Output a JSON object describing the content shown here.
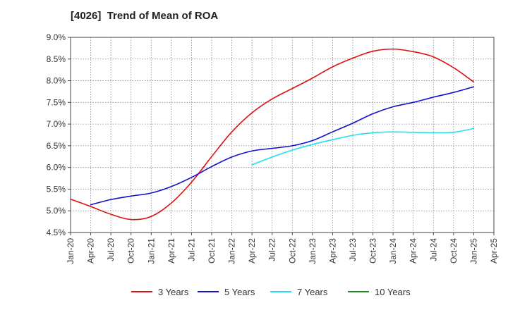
{
  "chart_data": {
    "type": "line",
    "title": "[4026]  Trend of Mean of ROA",
    "xlabel": "",
    "ylabel": "",
    "x_ticks": [
      "Jan-20",
      "Apr-20",
      "Jul-20",
      "Oct-20",
      "Jan-21",
      "Apr-21",
      "Jul-21",
      "Oct-21",
      "Jan-22",
      "Apr-22",
      "Jul-22",
      "Oct-22",
      "Jan-23",
      "Apr-23",
      "Jul-23",
      "Oct-23",
      "Jan-24",
      "Apr-24",
      "Jul-24",
      "Oct-24",
      "Jan-25",
      "Apr-25"
    ],
    "y_ticks": [
      "9.0%",
      "8.5%",
      "8.0%",
      "7.5%",
      "7.0%",
      "6.5%",
      "6.0%",
      "5.5%",
      "5.0%",
      "4.5%"
    ],
    "ylim": [
      4.5,
      9.0
    ],
    "grid": true,
    "legend_position": "bottom",
    "series": [
      {
        "name": "3 Years",
        "color": "#dd1111",
        "points": [
          [
            "Jan-20",
            5.27
          ],
          [
            "Apr-20",
            5.1
          ],
          [
            "Jul-20",
            4.92
          ],
          [
            "Oct-20",
            4.8
          ],
          [
            "Jan-21",
            4.87
          ],
          [
            "Apr-21",
            5.18
          ],
          [
            "Jul-21",
            5.66
          ],
          [
            "Oct-21",
            6.25
          ],
          [
            "Jan-22",
            6.82
          ],
          [
            "Apr-22",
            7.26
          ],
          [
            "Jul-22",
            7.58
          ],
          [
            "Oct-22",
            7.82
          ],
          [
            "Jan-23",
            8.06
          ],
          [
            "Apr-23",
            8.32
          ],
          [
            "Jul-23",
            8.52
          ],
          [
            "Oct-23",
            8.68
          ],
          [
            "Jan-24",
            8.73
          ],
          [
            "Apr-24",
            8.67
          ],
          [
            "Jul-24",
            8.55
          ],
          [
            "Oct-24",
            8.3
          ],
          [
            "Jan-25",
            7.97
          ]
        ]
      },
      {
        "name": "5 Years",
        "color": "#1111cc",
        "points": [
          [
            "Apr-20",
            5.14
          ],
          [
            "Jul-20",
            5.26
          ],
          [
            "Oct-20",
            5.34
          ],
          [
            "Jan-21",
            5.41
          ],
          [
            "Apr-21",
            5.56
          ],
          [
            "Jul-21",
            5.77
          ],
          [
            "Oct-21",
            6.02
          ],
          [
            "Jan-22",
            6.24
          ],
          [
            "Apr-22",
            6.38
          ],
          [
            "Jul-22",
            6.44
          ],
          [
            "Oct-22",
            6.5
          ],
          [
            "Jan-23",
            6.62
          ],
          [
            "Apr-23",
            6.82
          ],
          [
            "Jul-23",
            7.02
          ],
          [
            "Oct-23",
            7.24
          ],
          [
            "Jan-24",
            7.4
          ],
          [
            "Apr-24",
            7.5
          ],
          [
            "Jul-24",
            7.62
          ],
          [
            "Oct-24",
            7.73
          ],
          [
            "Jan-25",
            7.86
          ]
        ]
      },
      {
        "name": "7 Years",
        "color": "#22e0f0",
        "points": [
          [
            "Apr-22",
            6.06
          ],
          [
            "Jul-22",
            6.24
          ],
          [
            "Oct-22",
            6.4
          ],
          [
            "Jan-23",
            6.53
          ],
          [
            "Apr-23",
            6.64
          ],
          [
            "Jul-23",
            6.74
          ],
          [
            "Oct-23",
            6.8
          ],
          [
            "Jan-24",
            6.82
          ],
          [
            "Apr-24",
            6.81
          ],
          [
            "Jul-24",
            6.8
          ],
          [
            "Oct-24",
            6.81
          ],
          [
            "Jan-25",
            6.9
          ]
        ]
      },
      {
        "name": "10 Years",
        "color": "#228822",
        "points": []
      }
    ]
  }
}
